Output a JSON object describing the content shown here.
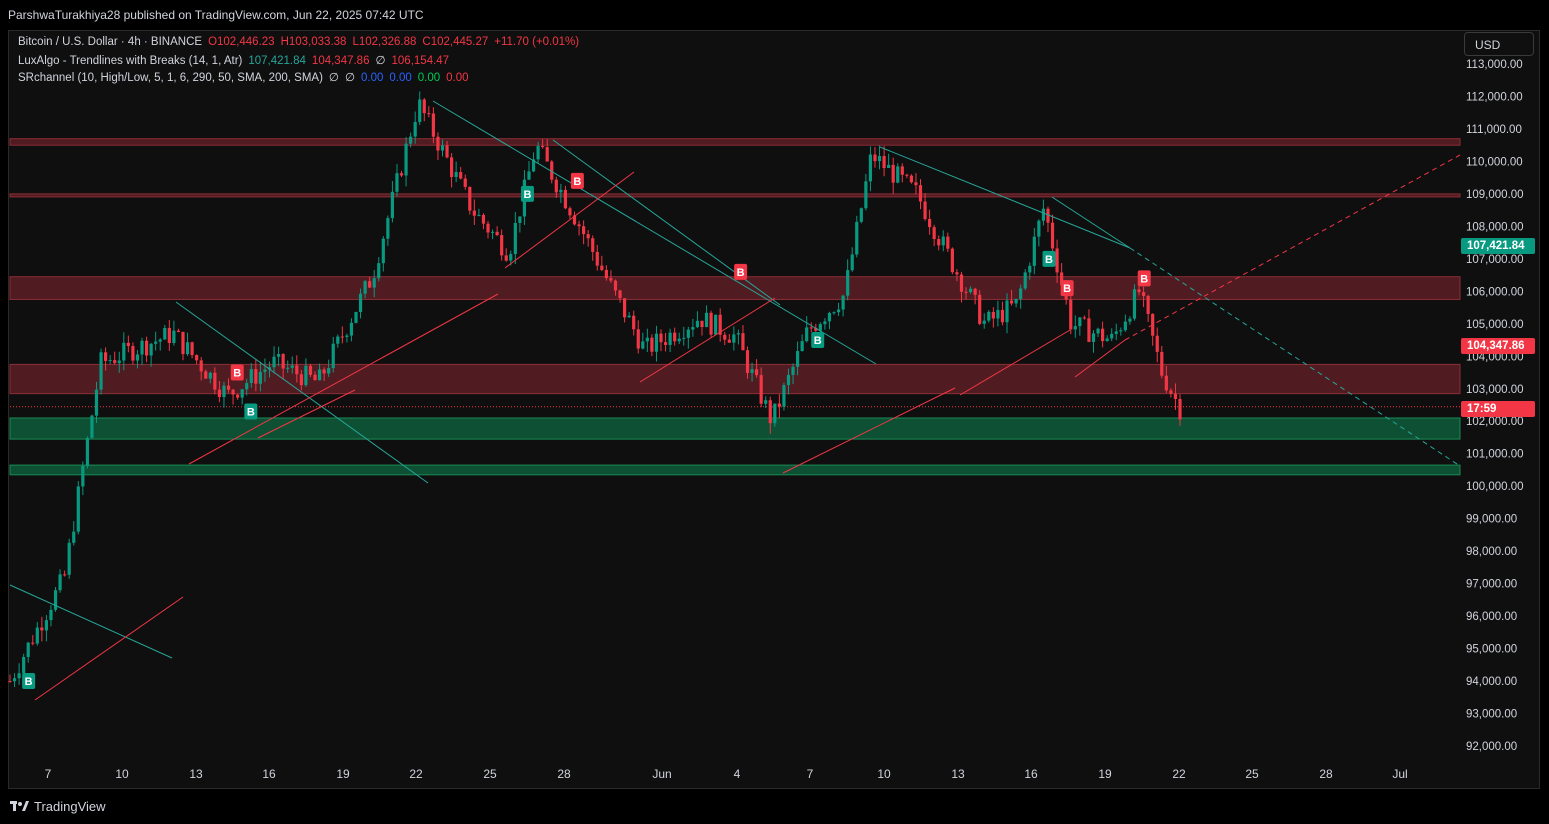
{
  "header": {
    "publisher_line": "ParshwaTurakhiya28 published on TradingView.com, Jun 22, 2025 07:42 UTC"
  },
  "legend": {
    "symbol": "Bitcoin / U.S. Dollar · 4h · BINANCE",
    "open": "O102,446.23",
    "high": "H103,033.38",
    "low": "L102,326.88",
    "close": "C102,445.27",
    "change": "+11.70 (+0.01%)",
    "indicator1_name": "LuxAlgo - Trendlines with Breaks (14, 1, Atr)",
    "indicator1_values": [
      "107,421.84",
      "104,347.86",
      "∅",
      "106,154.47"
    ],
    "indicator2_name": "SRchannel (10, High/Low, 5, 1, 6, 290, 50, SMA, 200, SMA)",
    "indicator2_values": [
      "∅",
      "∅",
      "0.00",
      "0.00",
      "0.00",
      "0.00"
    ]
  },
  "currency_button": "USD",
  "price_tags": {
    "upper_trend": "107,421.84",
    "lower_trend": "104,347.86",
    "countdown": "17:59"
  },
  "footer": {
    "brand": "TradingView"
  },
  "colors": {
    "up": "#089981",
    "down": "#f23645",
    "teal_line": "#26a69a",
    "resistance_zone": "#5c1f24",
    "support_zone": "#0d5c3a"
  },
  "chart_data": {
    "type": "candlestick",
    "y_ticks": [
      "113,000.00",
      "112,000.00",
      "111,000.00",
      "110,000.00",
      "109,000.00",
      "108,000.00",
      "107,000.00",
      "106,000.00",
      "105,000.00",
      "104,000.00",
      "103,000.00",
      "102,000.00",
      "101,000.00",
      "100,000.00",
      "99,000.00",
      "98,000.00",
      "97,000.00",
      "96,000.00",
      "95,000.00",
      "94,000.00",
      "93,000.00",
      "92,000.00"
    ],
    "x_ticks": [
      "7",
      "10",
      "13",
      "16",
      "19",
      "22",
      "25",
      "28",
      "Jun",
      "4",
      "7",
      "10",
      "13",
      "16",
      "19",
      "22",
      "25",
      "28",
      "Jul"
    ],
    "ylim": [
      91500,
      113500
    ],
    "zones": [
      {
        "kind": "resistance",
        "from": 110500,
        "to": 110700
      },
      {
        "kind": "resistance",
        "from": 108950,
        "to": 109000
      },
      {
        "kind": "resistance",
        "from": 105750,
        "to": 106450
      },
      {
        "kind": "resistance",
        "from": 102850,
        "to": 103750
      },
      {
        "kind": "support",
        "from": 101450,
        "to": 102100
      },
      {
        "kind": "support",
        "from": 100350,
        "to": 100650
      }
    ],
    "key_prices": [
      {
        "name": "upper trendline",
        "value": 107421.84
      },
      {
        "name": "lower trendline",
        "value": 104347.86
      },
      {
        "name": "last price",
        "value": 102445.27
      }
    ],
    "ohlc_anchor_points": [
      {
        "t": 0.0,
        "p": 94000
      },
      {
        "t": 1.2,
        "p": 97200
      },
      {
        "t": 2.0,
        "p": 103800
      },
      {
        "t": 3.6,
        "p": 104700
      },
      {
        "t": 4.8,
        "p": 102800
      },
      {
        "t": 5.8,
        "p": 103800
      },
      {
        "t": 6.8,
        "p": 103200
      },
      {
        "t": 8.0,
        "p": 106500
      },
      {
        "t": 9.0,
        "p": 111800
      },
      {
        "t": 10.2,
        "p": 108500
      },
      {
        "t": 11.0,
        "p": 107200
      },
      {
        "t": 11.6,
        "p": 110500
      },
      {
        "t": 12.5,
        "p": 108200
      },
      {
        "t": 13.3,
        "p": 106000
      },
      {
        "t": 14.0,
        "p": 104200
      },
      {
        "t": 15.2,
        "p": 105200
      },
      {
        "t": 16.0,
        "p": 104600
      },
      {
        "t": 16.8,
        "p": 102000
      },
      {
        "t": 17.6,
        "p": 104800
      },
      {
        "t": 18.4,
        "p": 105900
      },
      {
        "t": 19.0,
        "p": 110200
      },
      {
        "t": 20.0,
        "p": 109000
      },
      {
        "t": 20.8,
        "p": 106800
      },
      {
        "t": 21.5,
        "p": 105000
      },
      {
        "t": 22.2,
        "p": 105600
      },
      {
        "t": 22.8,
        "p": 108600
      },
      {
        "t": 23.4,
        "p": 105000
      },
      {
        "t": 24.3,
        "p": 104500
      },
      {
        "t": 24.9,
        "p": 106000
      },
      {
        "t": 25.4,
        "p": 103500
      },
      {
        "t": 25.8,
        "p": 102400
      }
    ],
    "signal_labels": [
      {
        "type": "B",
        "dir": "up",
        "t": 0.4,
        "p": 94000
      },
      {
        "type": "B",
        "dir": "down",
        "t": 5.0,
        "p": 103500
      },
      {
        "type": "B",
        "dir": "up",
        "t": 5.3,
        "p": 102300
      },
      {
        "type": "B",
        "dir": "up",
        "t": 11.4,
        "p": 109000
      },
      {
        "type": "B",
        "dir": "down",
        "t": 12.5,
        "p": 109400
      },
      {
        "type": "B",
        "dir": "down",
        "t": 16.1,
        "p": 106600
      },
      {
        "type": "B",
        "dir": "up",
        "t": 17.8,
        "p": 104500
      },
      {
        "type": "B",
        "dir": "up",
        "t": 22.9,
        "p": 107000
      },
      {
        "type": "B",
        "dir": "down",
        "t": 23.3,
        "p": 106100
      },
      {
        "type": "B",
        "dir": "down",
        "t": 25.0,
        "p": 106400
      }
    ]
  }
}
